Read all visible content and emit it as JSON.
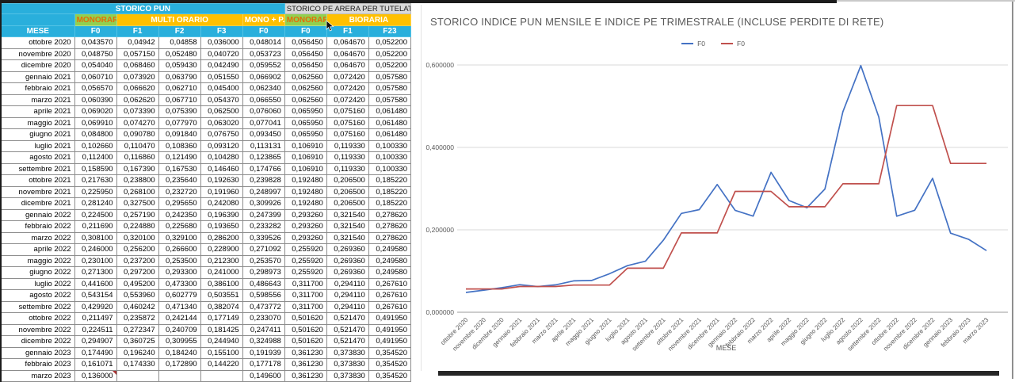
{
  "colors": {
    "cyan": "#29AFDC",
    "green": "#92D050",
    "yellow": "#FFC000",
    "gray_header": "#D9D9D9",
    "orange_text": "#E36C09",
    "blue_line": "#4472C4",
    "red_line": "#C0504D"
  },
  "table": {
    "group_row": [
      {
        "label": "STORICO PUN",
        "span": 6,
        "style": "cyan"
      },
      {
        "label": "STORICO PE ARERA PER TUTELATO",
        "span": 3,
        "style": "gray"
      }
    ],
    "band_row": [
      {
        "label": "",
        "span": 1,
        "style": "cyan"
      },
      {
        "label": "MONORARIO",
        "span": 1,
        "style": "green"
      },
      {
        "label": "MULTI ORARIO",
        "span": 3,
        "style": "yellow"
      },
      {
        "label": "MONO + P.R.",
        "span": 1,
        "style": "yellow"
      },
      {
        "label": "MONORARIO",
        "span": 1,
        "style": "green"
      },
      {
        "label": "BIORARIA",
        "span": 2,
        "style": "yellow"
      }
    ],
    "column_row": [
      "MESE",
      "F0",
      "F1",
      "F2",
      "F3",
      "F0",
      "F0",
      "F1",
      "F23"
    ],
    "rows": [
      [
        "ottobre 2020",
        "0,043570",
        "0,04942",
        "0,04858",
        "0,036000",
        "0,048014",
        "0,056450",
        "0,064670",
        "0,052200"
      ],
      [
        "novembre 2020",
        "0,048750",
        "0,057150",
        "0,052480",
        "0,040720",
        "0,053723",
        "0,056450",
        "0,064670",
        "0,052200"
      ],
      [
        "dicembre 2020",
        "0,054040",
        "0,068460",
        "0,059430",
        "0,042490",
        "0,059552",
        "0,056450",
        "0,064670",
        "0,052200"
      ],
      [
        "gennaio 2021",
        "0,060710",
        "0,073920",
        "0,063790",
        "0,051550",
        "0,066902",
        "0,062560",
        "0,072420",
        "0,057580"
      ],
      [
        "febbraio 2021",
        "0,056570",
        "0,066620",
        "0,062710",
        "0,045400",
        "0,062340",
        "0,062560",
        "0,072420",
        "0,057580"
      ],
      [
        "marzo 2021",
        "0,060390",
        "0,062620",
        "0,067710",
        "0,054370",
        "0,066550",
        "0,062560",
        "0,072420",
        "0,057580"
      ],
      [
        "aprile 2021",
        "0,069020",
        "0,073390",
        "0,075390",
        "0,062500",
        "0,076060",
        "0,065950",
        "0,075160",
        "0,061480"
      ],
      [
        "maggio 2021",
        "0,069910",
        "0,074270",
        "0,077970",
        "0,063020",
        "0,077041",
        "0,065950",
        "0,075160",
        "0,061480"
      ],
      [
        "giugno 2021",
        "0,084800",
        "0,090780",
        "0,091840",
        "0,076750",
        "0,093450",
        "0,065950",
        "0,075160",
        "0,061480"
      ],
      [
        "luglio 2021",
        "0,102660",
        "0,110470",
        "0,108360",
        "0,093120",
        "0,113131",
        "0,106910",
        "0,119330",
        "0,100330"
      ],
      [
        "agosto 2021",
        "0,112400",
        "0,116860",
        "0,121490",
        "0,104280",
        "0,123865",
        "0,106910",
        "0,119330",
        "0,100330"
      ],
      [
        "settembre 2021",
        "0,158590",
        "0,167390",
        "0,167530",
        "0,146460",
        "0,174766",
        "0,106910",
        "0,119330",
        "0,100330"
      ],
      [
        "ottobre 2021",
        "0,217630",
        "0,238800",
        "0,235640",
        "0,192630",
        "0,239828",
        "0,192480",
        "0,206500",
        "0,185220"
      ],
      [
        "novembre 2021",
        "0,225950",
        "0,268100",
        "0,232720",
        "0,191960",
        "0,248997",
        "0,192480",
        "0,206500",
        "0,185220"
      ],
      [
        "dicembre 2021",
        "0,281240",
        "0,327500",
        "0,295650",
        "0,242080",
        "0,309926",
        "0,192480",
        "0,206500",
        "0,185220"
      ],
      [
        "gennaio 2022",
        "0,224500",
        "0,257190",
        "0,242350",
        "0,196390",
        "0,247399",
        "0,293260",
        "0,321540",
        "0,278620"
      ],
      [
        "febbraio 2022",
        "0,211690",
        "0,224880",
        "0,225680",
        "0,193650",
        "0,233282",
        "0,293260",
        "0,321540",
        "0,278620"
      ],
      [
        "marzo 2022",
        "0,308100",
        "0,320100",
        "0,329100",
        "0,286200",
        "0,339526",
        "0,293260",
        "0,321540",
        "0,278620"
      ],
      [
        "aprile 2022",
        "0,246000",
        "0,256200",
        "0,266600",
        "0,228900",
        "0,271092",
        "0,255920",
        "0,269360",
        "0,249580"
      ],
      [
        "maggio 2022",
        "0,230100",
        "0,237200",
        "0,253500",
        "0,212300",
        "0,253570",
        "0,255920",
        "0,269360",
        "0,249580"
      ],
      [
        "giugno 2022",
        "0,271300",
        "0,297200",
        "0,293300",
        "0,241000",
        "0,298973",
        "0,255920",
        "0,269360",
        "0,249580"
      ],
      [
        "luglio 2022",
        "0,441600",
        "0,495200",
        "0,473300",
        "0,386100",
        "0,486643",
        "0,311700",
        "0,294110",
        "0,267610"
      ],
      [
        "agosto 2022",
        "0,543154",
        "0,553960",
        "0,602779",
        "0,503551",
        "0,598556",
        "0,311700",
        "0,294110",
        "0,267610"
      ],
      [
        "settembre 2022",
        "0,429920",
        "0,460242",
        "0,471340",
        "0,382074",
        "0,473772",
        "0,311700",
        "0,294110",
        "0,267610"
      ],
      [
        "ottobre 2022",
        "0,211497",
        "0,235872",
        "0,242144",
        "0,177149",
        "0,233070",
        "0,501620",
        "0,521470",
        "0,491950"
      ],
      [
        "novembre 2022",
        "0,224511",
        "0,272347",
        "0,240709",
        "0,181425",
        "0,247411",
        "0,501620",
        "0,521470",
        "0,491950"
      ],
      [
        "dicembre 2022",
        "0,294907",
        "0,360725",
        "0,309955",
        "0,244940",
        "0,324988",
        "0,501620",
        "0,521470",
        "0,491950"
      ],
      [
        "gennaio 2023",
        "0,174490",
        "0,196240",
        "0,184240",
        "0,155100",
        "0,191939",
        "0,361230",
        "0,373830",
        "0,354520"
      ],
      [
        "febbraio 2023",
        "0,161071",
        "0,174330",
        "0,172890",
        "0,144220",
        "0,177178",
        "0,361230",
        "0,373830",
        "0,354520"
      ],
      [
        "marzo 2023",
        "0,136000",
        "",
        "",
        "",
        "0,149600",
        "0,361230",
        "0,373830",
        "0,354520"
      ]
    ],
    "note_cell": {
      "row_index": 29,
      "col_index": 1
    }
  },
  "chart_data": {
    "type": "line",
    "title": "STORICO INDICE PUN MENSILE E INDICE PE TRIMESTRALE (INCLUSE PERDITE DI RETE)",
    "xlabel": "MESE",
    "ylabel": "",
    "ylim": [
      0,
      0.6
    ],
    "ytick_values": [
      0,
      0.2,
      0.4,
      0.6
    ],
    "ytick_labels": [
      "0,000000",
      "0,200000",
      "0,400000",
      "0,600000"
    ],
    "grid": true,
    "legend_position": "top",
    "categories": [
      "ottobre 2020",
      "novembre 2020",
      "dicembre 2020",
      "gennaio 2021",
      "febbraio 2021",
      "marzo 2021",
      "aprile 2021",
      "maggio 2021",
      "giugno 2021",
      "luglio 2021",
      "agosto 2021",
      "settembre 2021",
      "ottobre 2021",
      "novembre 2021",
      "dicembre 2021",
      "gennaio 2022",
      "febbraio 2022",
      "marzo 2022",
      "aprile 2022",
      "maggio 2022",
      "giugno 2022",
      "luglio 2022",
      "agosto 2022",
      "settembre 2022",
      "ottobre 2022",
      "novembre 2022",
      "dicembre 2022",
      "gennaio 2023",
      "febbraio 2023",
      "marzo 2023"
    ],
    "series": [
      {
        "name": "F0",
        "color": "#4472C4",
        "values": [
          0.048014,
          0.053723,
          0.059552,
          0.066902,
          0.06234,
          0.06655,
          0.07606,
          0.077041,
          0.09345,
          0.113131,
          0.123865,
          0.174766,
          0.239828,
          0.248997,
          0.309926,
          0.247399,
          0.233282,
          0.339526,
          0.271092,
          0.25357,
          0.298973,
          0.486643,
          0.598556,
          0.473772,
          0.23307,
          0.247411,
          0.324988,
          0.191939,
          0.177178,
          0.1496
        ]
      },
      {
        "name": "F0",
        "color": "#C0504D",
        "values": [
          0.05645,
          0.05645,
          0.05645,
          0.06256,
          0.06256,
          0.06256,
          0.06595,
          0.06595,
          0.06595,
          0.10691,
          0.10691,
          0.10691,
          0.19248,
          0.19248,
          0.19248,
          0.29326,
          0.29326,
          0.29326,
          0.25592,
          0.25592,
          0.25592,
          0.3117,
          0.3117,
          0.3117,
          0.50162,
          0.50162,
          0.50162,
          0.36123,
          0.36123,
          0.36123
        ]
      }
    ]
  }
}
